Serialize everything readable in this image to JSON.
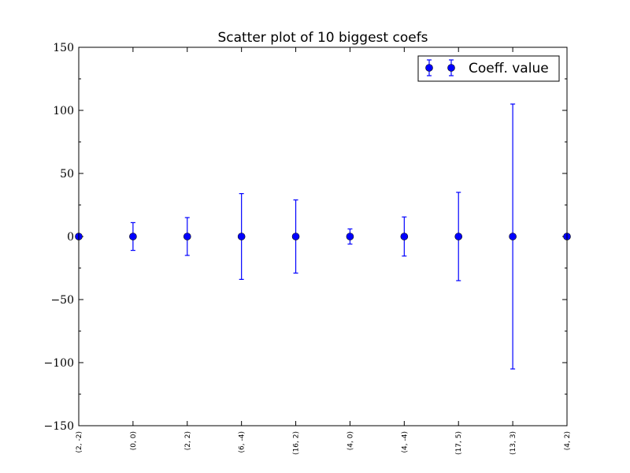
{
  "chart_data": {
    "type": "scatter",
    "title": "Scatter plot of 10 biggest coefs",
    "xlabel": "",
    "ylabel": "",
    "ylim": [
      -150,
      150
    ],
    "xlim": [
      0,
      9
    ],
    "grid": false,
    "legend_position": "top-right",
    "categories": [
      "(2, -2)",
      "(0, 0)",
      "(2, 2)",
      "(6, -4)",
      "(16, 2)",
      "(4, 0)",
      "(4, -4)",
      "(17, 5)",
      "(13, 3)",
      "(4, 2)"
    ],
    "y_ticks": [
      150,
      100,
      50,
      0,
      -50,
      -100,
      -150
    ],
    "y_tick_labels": [
      "150",
      "100",
      "50",
      "0",
      "−50",
      "−100",
      "−150"
    ],
    "series": [
      {
        "name": "Coeff. value",
        "color": "#0000ff",
        "values": [
          0,
          0,
          0,
          0,
          0,
          0,
          0,
          0,
          0,
          0
        ],
        "errors": [
          0,
          11,
          15,
          34,
          29,
          6,
          15.5,
          35,
          105,
          0
        ]
      }
    ]
  }
}
